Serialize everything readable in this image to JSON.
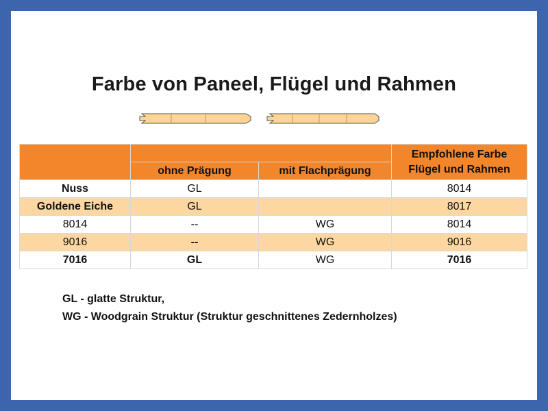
{
  "title": "Farbe von Paneel, Flügel und Rahmen",
  "table": {
    "col_ohne": "ohne Prägung",
    "col_mit": "mit Flachprägung",
    "col_rec_line1": "Empfohlene Farbe",
    "col_rec_line2": "Flügel und Rahmen",
    "rows": [
      {
        "name": "Nuss",
        "ohne": "GL",
        "mit": "",
        "rec": "8014"
      },
      {
        "name": "Goldene Eiche",
        "ohne": "GL",
        "mit": "",
        "rec": "8017"
      },
      {
        "name": "8014",
        "ohne": "--",
        "mit": "WG",
        "rec": "8014"
      },
      {
        "name": "9016",
        "ohne": "--",
        "mit": "WG",
        "rec": "9016"
      },
      {
        "name": "7016",
        "ohne": "GL",
        "mit": "WG",
        "rec": "7016"
      }
    ]
  },
  "legend": {
    "line1": "GL - glatte Struktur,",
    "line2": "WG - Woodgrain Struktur (Struktur geschnittenes Zedernholzes)"
  },
  "colors": {
    "frame": "#3d65ad",
    "header": "#f3862a",
    "row_alt": "#fcd7a1",
    "panel": "#fcd494"
  }
}
